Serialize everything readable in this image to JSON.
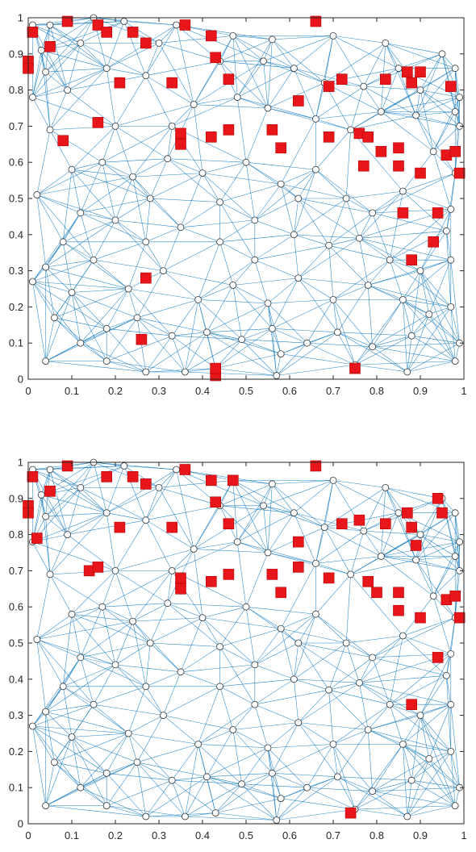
{
  "colors": {
    "edge": "#0072BD",
    "node_outline": "#333333",
    "marker_fill": "#E8161A",
    "marker_outline": "#B40000",
    "axis": "#262626",
    "background": "#FFFFFF"
  },
  "chart_data": [
    {
      "type": "scatter",
      "title": "",
      "xlabel": "",
      "ylabel": "",
      "xlim": [
        0,
        1
      ],
      "ylim": [
        0,
        1
      ],
      "grid": false,
      "xticks": [
        0,
        0.1,
        0.2,
        0.3,
        0.4,
        0.5,
        0.6,
        0.7,
        0.8,
        0.9,
        1
      ],
      "yticks": [
        0,
        0.1,
        0.2,
        0.3,
        0.4,
        0.5,
        0.6,
        0.7,
        0.8,
        0.9,
        1
      ],
      "xtick_labels": [
        "0",
        "0.1",
        "0.2",
        "0.3",
        "0.4",
        "0.5",
        "0.6",
        "0.7",
        "0.8",
        "0.9",
        "1"
      ],
      "ytick_labels": [
        "0",
        "0.1",
        "0.2",
        "0.3",
        "0.4",
        "0.5",
        "0.6",
        "0.7",
        "0.8",
        "0.9",
        "1"
      ],
      "series": [
        {
          "role": "network-edges",
          "description": "k-nearest-neighbour links between sensor nodes",
          "neighbors_per_node": 9
        },
        {
          "role": "sensor-nodes",
          "marker": "circle",
          "points": [
            [
              0.01,
              0.98
            ],
            [
              0.03,
              0.91
            ],
            [
              0.04,
              0.85
            ],
            [
              0.01,
              0.78
            ],
            [
              0.05,
              0.69
            ],
            [
              0.02,
              0.51
            ],
            [
              0.01,
              0.27
            ],
            [
              0.04,
              0.31
            ],
            [
              0.06,
              0.17
            ],
            [
              0.04,
              0.05
            ],
            [
              0.12,
              0.1
            ],
            [
              0.18,
              0.05
            ],
            [
              0.27,
              0.02
            ],
            [
              0.36,
              0.02
            ],
            [
              0.43,
              0.03
            ],
            [
              0.57,
              0.01
            ],
            [
              0.58,
              0.07
            ],
            [
              0.75,
              0.04
            ],
            [
              0.87,
              0.02
            ],
            [
              0.98,
              0.05
            ],
            [
              0.99,
              0.1
            ],
            [
              0.97,
              0.2
            ],
            [
              0.97,
              0.33
            ],
            [
              0.96,
              0.41
            ],
            [
              0.97,
              0.47
            ],
            [
              0.98,
              0.57
            ],
            [
              0.99,
              0.7
            ],
            [
              0.98,
              0.74
            ],
            [
              0.99,
              0.78
            ],
            [
              0.98,
              0.86
            ],
            [
              0.95,
              0.9
            ],
            [
              0.85,
              0.86
            ],
            [
              0.77,
              0.81
            ],
            [
              0.68,
              0.82
            ],
            [
              0.61,
              0.86
            ],
            [
              0.54,
              0.88
            ],
            [
              0.44,
              0.88
            ],
            [
              0.47,
              0.95
            ],
            [
              0.34,
              0.98
            ],
            [
              0.22,
              0.99
            ],
            [
              0.15,
              1.0
            ],
            [
              0.05,
              0.98
            ],
            [
              0.12,
              0.93
            ],
            [
              0.18,
              0.86
            ],
            [
              0.27,
              0.84
            ],
            [
              0.38,
              0.76
            ],
            [
              0.48,
              0.78
            ],
            [
              0.55,
              0.75
            ],
            [
              0.66,
              0.72
            ],
            [
              0.74,
              0.69
            ],
            [
              0.81,
              0.74
            ],
            [
              0.89,
              0.73
            ],
            [
              0.93,
              0.63
            ],
            [
              0.86,
              0.52
            ],
            [
              0.79,
              0.46
            ],
            [
              0.73,
              0.5
            ],
            [
              0.66,
              0.58
            ],
            [
              0.58,
              0.54
            ],
            [
              0.5,
              0.6
            ],
            [
              0.4,
              0.57
            ],
            [
              0.32,
              0.61
            ],
            [
              0.24,
              0.56
            ],
            [
              0.17,
              0.6
            ],
            [
              0.1,
              0.58
            ],
            [
              0.12,
              0.46
            ],
            [
              0.2,
              0.44
            ],
            [
              0.28,
              0.5
            ],
            [
              0.35,
              0.42
            ],
            [
              0.44,
              0.38
            ],
            [
              0.52,
              0.44
            ],
            [
              0.61,
              0.4
            ],
            [
              0.69,
              0.37
            ],
            [
              0.76,
              0.39
            ],
            [
              0.83,
              0.33
            ],
            [
              0.9,
              0.3
            ],
            [
              0.86,
              0.22
            ],
            [
              0.78,
              0.26
            ],
            [
              0.7,
              0.22
            ],
            [
              0.62,
              0.28
            ],
            [
              0.55,
              0.21
            ],
            [
              0.47,
              0.26
            ],
            [
              0.39,
              0.22
            ],
            [
              0.31,
              0.3
            ],
            [
              0.23,
              0.25
            ],
            [
              0.15,
              0.33
            ],
            [
              0.08,
              0.38
            ],
            [
              0.1,
              0.24
            ],
            [
              0.18,
              0.14
            ],
            [
              0.25,
              0.17
            ],
            [
              0.33,
              0.12
            ],
            [
              0.41,
              0.13
            ],
            [
              0.49,
              0.11
            ],
            [
              0.56,
              0.14
            ],
            [
              0.64,
              0.1
            ],
            [
              0.71,
              0.13
            ],
            [
              0.79,
              0.09
            ],
            [
              0.88,
              0.12
            ],
            [
              0.92,
              0.18
            ],
            [
              0.52,
              0.33
            ],
            [
              0.27,
              0.38
            ],
            [
              0.44,
              0.49
            ],
            [
              0.62,
              0.5
            ],
            [
              0.33,
              0.7
            ],
            [
              0.2,
              0.7
            ],
            [
              0.09,
              0.8
            ],
            [
              0.3,
              0.93
            ],
            [
              0.56,
              0.94
            ],
            [
              0.7,
              0.95
            ],
            [
              0.82,
              0.93
            ],
            [
              0.9,
              0.8
            ]
          ]
        },
        {
          "role": "highlighted-nodes",
          "marker": "square",
          "panel": 1,
          "points": [
            [
              0.01,
              0.96
            ],
            [
              0.09,
              0.99
            ],
            [
              0.16,
              0.98
            ],
            [
              0.18,
              0.96
            ],
            [
              0.24,
              0.96
            ],
            [
              0.27,
              0.93
            ],
            [
              0.36,
              0.98
            ],
            [
              0.42,
              0.95
            ],
            [
              0.43,
              0.89
            ],
            [
              0.05,
              0.92
            ],
            [
              0.0,
              0.88
            ],
            [
              0.0,
              0.86
            ],
            [
              0.21,
              0.82
            ],
            [
              0.33,
              0.82
            ],
            [
              0.46,
              0.83
            ],
            [
              0.66,
              0.99
            ],
            [
              0.16,
              0.71
            ],
            [
              0.08,
              0.66
            ],
            [
              0.35,
              0.68
            ],
            [
              0.35,
              0.65
            ],
            [
              0.42,
              0.67
            ],
            [
              0.46,
              0.69
            ],
            [
              0.56,
              0.69
            ],
            [
              0.58,
              0.64
            ],
            [
              0.62,
              0.77
            ],
            [
              0.69,
              0.81
            ],
            [
              0.72,
              0.83
            ],
            [
              0.82,
              0.83
            ],
            [
              0.87,
              0.85
            ],
            [
              0.88,
              0.82
            ],
            [
              0.9,
              0.85
            ],
            [
              0.97,
              0.81
            ],
            [
              0.69,
              0.67
            ],
            [
              0.76,
              0.68
            ],
            [
              0.78,
              0.67
            ],
            [
              0.81,
              0.63
            ],
            [
              0.77,
              0.59
            ],
            [
              0.85,
              0.64
            ],
            [
              0.85,
              0.59
            ],
            [
              0.9,
              0.57
            ],
            [
              0.96,
              0.62
            ],
            [
              0.98,
              0.63
            ],
            [
              0.99,
              0.57
            ],
            [
              0.86,
              0.46
            ],
            [
              0.94,
              0.46
            ],
            [
              0.93,
              0.38
            ],
            [
              0.88,
              0.33
            ],
            [
              0.27,
              0.28
            ],
            [
              0.26,
              0.11
            ],
            [
              0.43,
              0.01
            ],
            [
              0.43,
              0.03
            ],
            [
              0.75,
              0.03
            ]
          ]
        },
        {
          "role": "highlighted-nodes",
          "marker": "square",
          "panel": 2,
          "points": [
            [
              0.01,
              0.96
            ],
            [
              0.09,
              0.99
            ],
            [
              0.18,
              0.96
            ],
            [
              0.24,
              0.96
            ],
            [
              0.27,
              0.94
            ],
            [
              0.36,
              0.98
            ],
            [
              0.42,
              0.95
            ],
            [
              0.43,
              0.89
            ],
            [
              0.47,
              0.95
            ],
            [
              0.05,
              0.92
            ],
            [
              0.0,
              0.88
            ],
            [
              0.0,
              0.86
            ],
            [
              0.02,
              0.79
            ],
            [
              0.21,
              0.82
            ],
            [
              0.33,
              0.82
            ],
            [
              0.46,
              0.83
            ],
            [
              0.66,
              0.99
            ],
            [
              0.14,
              0.7
            ],
            [
              0.16,
              0.71
            ],
            [
              0.35,
              0.68
            ],
            [
              0.35,
              0.65
            ],
            [
              0.42,
              0.67
            ],
            [
              0.46,
              0.69
            ],
            [
              0.56,
              0.69
            ],
            [
              0.58,
              0.64
            ],
            [
              0.62,
              0.71
            ],
            [
              0.62,
              0.78
            ],
            [
              0.69,
              0.68
            ],
            [
              0.72,
              0.83
            ],
            [
              0.76,
              0.84
            ],
            [
              0.82,
              0.83
            ],
            [
              0.87,
              0.86
            ],
            [
              0.88,
              0.82
            ],
            [
              0.89,
              0.77
            ],
            [
              0.94,
              0.9
            ],
            [
              0.95,
              0.86
            ],
            [
              0.78,
              0.67
            ],
            [
              0.8,
              0.64
            ],
            [
              0.85,
              0.64
            ],
            [
              0.85,
              0.59
            ],
            [
              0.9,
              0.57
            ],
            [
              0.96,
              0.62
            ],
            [
              0.98,
              0.63
            ],
            [
              0.99,
              0.57
            ],
            [
              0.94,
              0.46
            ],
            [
              0.88,
              0.33
            ],
            [
              0.74,
              0.03
            ]
          ]
        }
      ]
    }
  ]
}
